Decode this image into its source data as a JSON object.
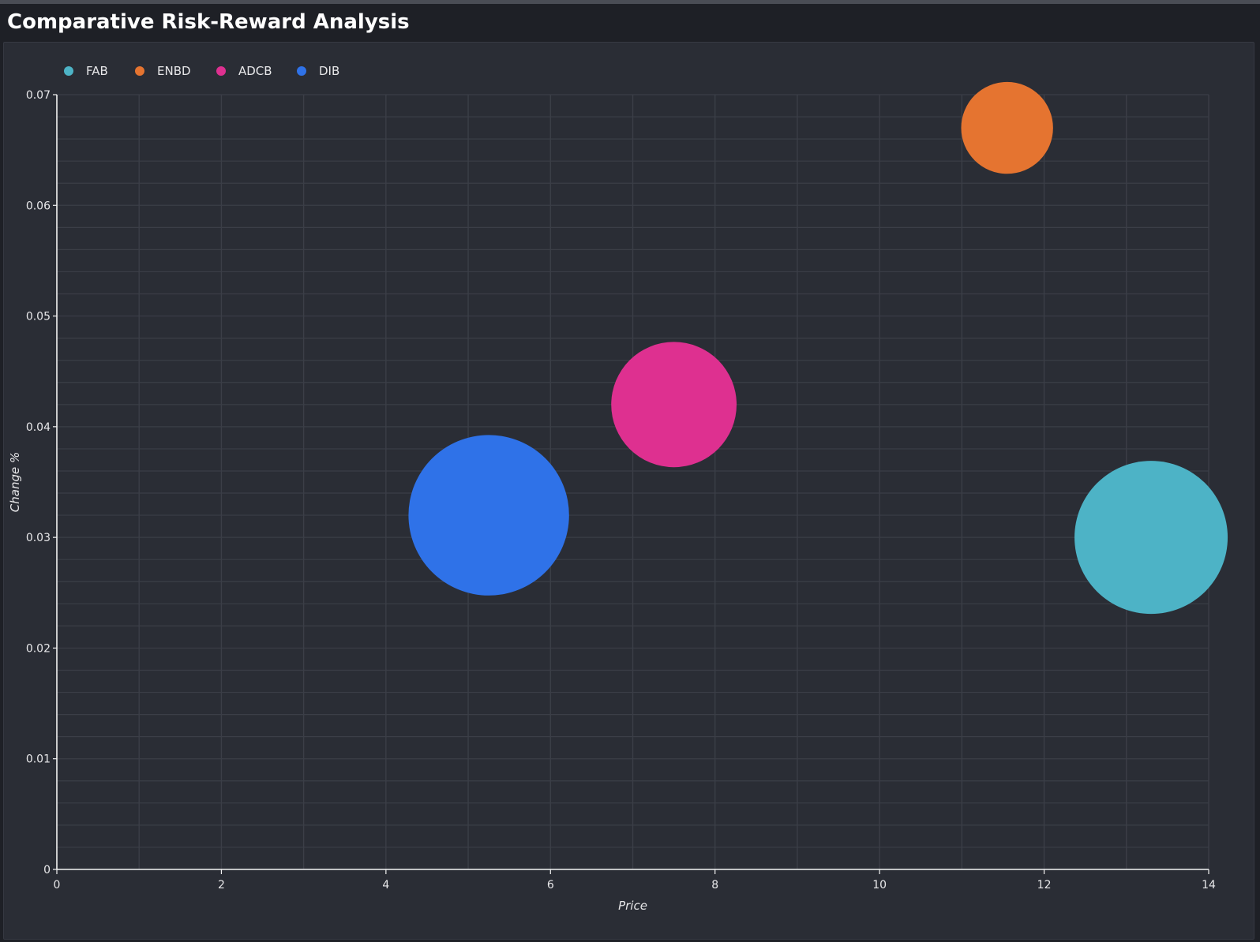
{
  "app": {
    "title": "Comparative Risk-Reward Analysis"
  },
  "chart_data": {
    "type": "bubble",
    "title": "Comparative Risk-Reward Analysis",
    "xlabel": "Price",
    "ylabel": "Change %",
    "xlim": [
      0,
      14
    ],
    "ylim": [
      0,
      0.07
    ],
    "xticks": [
      "0",
      "2",
      "4",
      "6",
      "8",
      "10",
      "12",
      "14"
    ],
    "yticks": [
      "0",
      "0.01",
      "0.02",
      "0.03",
      "0.04",
      "0.05",
      "0.06",
      "0.07"
    ],
    "grid": true,
    "legend_position": "top-left",
    "series": [
      {
        "name": "FAB",
        "color": "#4db3c6",
        "x": 13.3,
        "y": 0.03,
        "size": 1.0
      },
      {
        "name": "ENBD",
        "color": "#e57430",
        "x": 11.55,
        "y": 0.067,
        "size": 0.36
      },
      {
        "name": "ADCB",
        "color": "#de3090",
        "x": 7.5,
        "y": 0.042,
        "size": 0.67
      },
      {
        "name": "DIB",
        "color": "#2f72e8",
        "x": 5.25,
        "y": 0.032,
        "size": 1.1
      }
    ]
  }
}
